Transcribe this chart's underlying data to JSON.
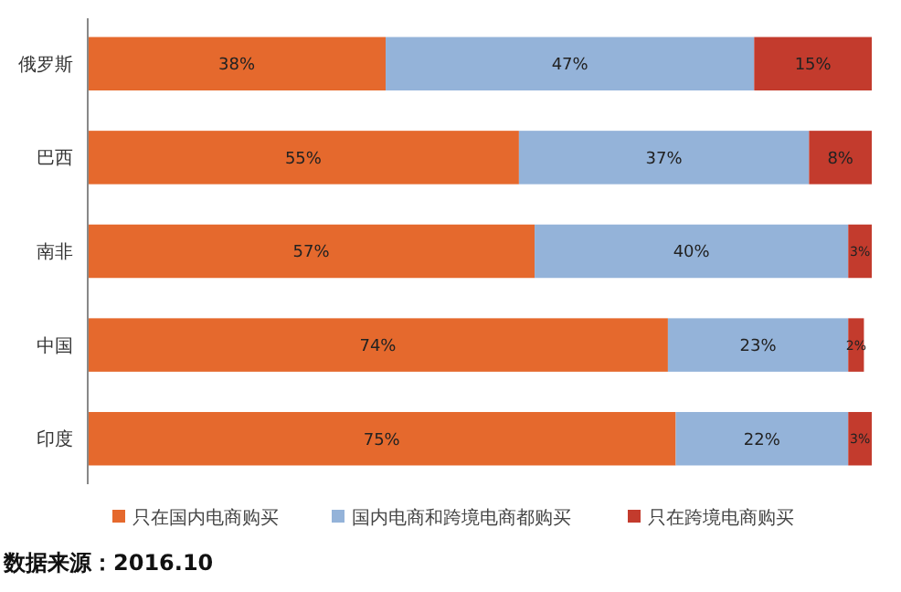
{
  "chart_data": {
    "type": "bar",
    "orientation": "horizontal",
    "stacked": true,
    "legend": "bottom",
    "categories": [
      "俄罗斯",
      "巴西",
      "南非",
      "中国",
      "印度"
    ],
    "series": [
      {
        "name": "只在国内电商购买",
        "color": "#e5692d",
        "values": [
          38,
          55,
          57,
          74,
          75
        ],
        "value_labels": [
          "38%",
          "55%",
          "57%",
          "74%",
          "75%"
        ]
      },
      {
        "name": "国内电商和跨境电商都购买",
        "color": "#94b3d9",
        "values": [
          47,
          37,
          40,
          23,
          22
        ],
        "value_labels": [
          "47%",
          "37%",
          "40%",
          "23%",
          "22%"
        ]
      },
      {
        "name": "只在跨境电商购买",
        "color": "#c33b2d",
        "values": [
          15,
          8,
          3,
          2,
          3
        ],
        "value_labels": [
          "15%",
          "8%",
          "3%",
          "2%",
          "3%"
        ]
      }
    ],
    "annotations": [
      "数据来源：2016.10"
    ]
  }
}
